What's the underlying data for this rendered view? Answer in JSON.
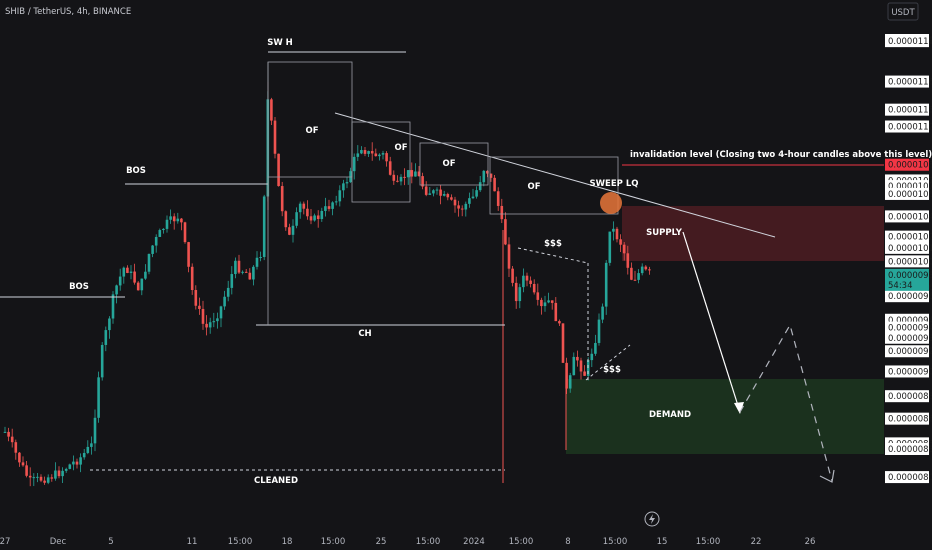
{
  "header": {
    "symbol_title": "SHIB / TetherUS, 4h, BINANCE",
    "currency": "USDT"
  },
  "chart_data": {
    "type": "candlestick",
    "price_axis_labels": [
      {
        "label": "0.00001197",
        "value": 1197
      },
      {
        "label": "0.00001196",
        "value": 1196
      },
      {
        "label": "0.00001160",
        "value": 1160
      },
      {
        "label": "0.00001135",
        "value": 1135
      },
      {
        "label": "0.00001120",
        "value": 1120
      },
      {
        "label": "0.00001086",
        "value": 1086,
        "color": "#f23645",
        "highlight": true
      },
      {
        "label": "0.00001070",
        "value": 1072
      },
      {
        "label": "0.00001070",
        "value": 1067
      },
      {
        "label": "0.00001060",
        "value": 1060
      },
      {
        "label": "0.00001040",
        "value": 1040
      },
      {
        "label": "0.00001022",
        "value": 1022
      },
      {
        "label": "0.00001012",
        "value": 1012
      },
      {
        "label": "0.00001000",
        "value": 1000
      },
      {
        "label": "0.00000969",
        "value": 977
      },
      {
        "label": "0.00000969",
        "value": 969
      },
      {
        "label": "0.00000948",
        "value": 948
      },
      {
        "label": "0.00000947",
        "value": 941
      },
      {
        "label": "0.00000932",
        "value": 932
      },
      {
        "label": "0.00000920",
        "value": 920
      },
      {
        "label": "0.00000902",
        "value": 902
      },
      {
        "label": "0.00000880",
        "value": 880
      },
      {
        "label": "0.00000860",
        "value": 860
      },
      {
        "label": "0.00000836",
        "value": 838
      },
      {
        "label": "0.00000836",
        "value": 833
      },
      {
        "label": "0.00000808",
        "value": 808
      }
    ],
    "current_price": {
      "label": "0.00000988",
      "value": 988,
      "countdown": "54:34",
      "color": "#26a69a"
    },
    "time_axis_labels": [
      "27",
      "Dec",
      "5",
      "11",
      "15:00",
      "18",
      "15:00",
      "25",
      "15:00",
      "2024",
      "15:00",
      "8",
      "15:00",
      "15",
      "15:00",
      "22",
      "26"
    ],
    "annotations": [
      "SW H",
      "OF",
      "OF",
      "OF",
      "OF",
      "BOS",
      "BOS",
      "CH",
      "SWEEP LQ",
      "$$$",
      "$$$",
      "SUPPLY",
      "DEMAND",
      "CLEANED",
      "invalidation level (Closing two 4-hour candles above this level)"
    ],
    "zones": [
      {
        "name": "SUPPLY",
        "from": 1000,
        "to": 1047,
        "color": "#f23645"
      },
      {
        "name": "DEMAND",
        "from": 855,
        "to": 903,
        "color": "#2e7d32"
      }
    ],
    "invalidation_level": 1070,
    "colors": {
      "up": "#26a69a",
      "down": "#ef5350",
      "background": "#141417"
    }
  }
}
